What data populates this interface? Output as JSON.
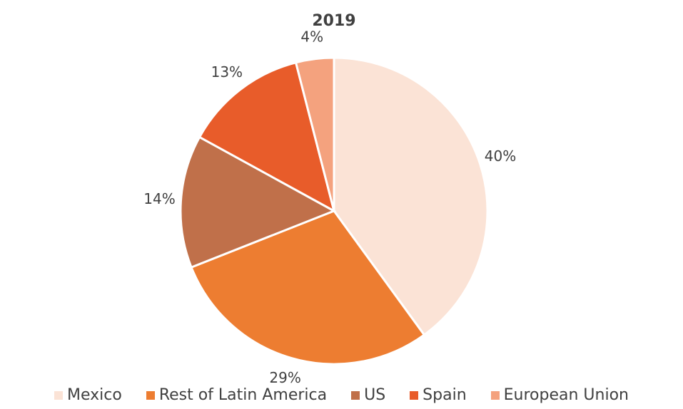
{
  "chart_data": {
    "type": "pie",
    "title": "2019",
    "categories": [
      "Mexico",
      "Rest of Latin America",
      "US",
      "Spain",
      "European Union"
    ],
    "values": [
      40,
      29,
      14,
      13,
      4
    ],
    "value_labels": [
      "40%",
      "29%",
      "14%",
      "13%",
      "4%"
    ],
    "colors": [
      "#fbe3d6",
      "#ed7d31",
      "#c0704a",
      "#e85c2a",
      "#f4a27e"
    ],
    "legend": "bottom"
  }
}
